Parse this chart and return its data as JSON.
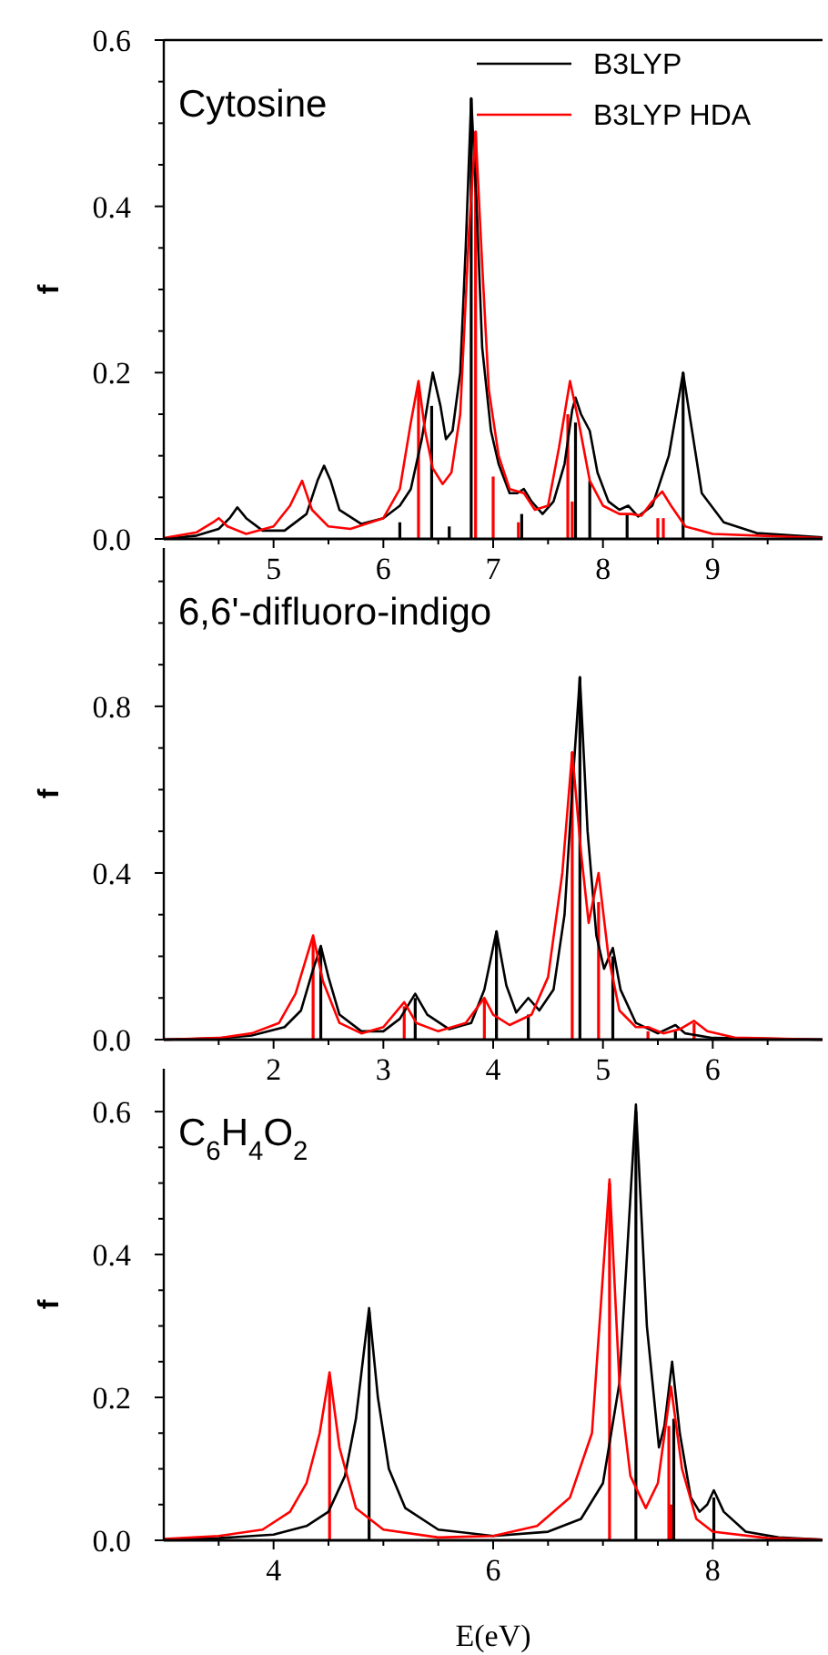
{
  "chart_data": [
    {
      "type": "line",
      "title": "Cytosine",
      "ylabel": "f",
      "xlim": [
        4,
        10
      ],
      "ylim": [
        0,
        0.6
      ],
      "legend": "top right",
      "xticks": [
        {
          "value": 4.5,
          "label": null
        },
        5,
        {
          "value": 5.5,
          "label": null
        },
        6,
        {
          "value": 6.5,
          "label": null
        },
        7,
        {
          "value": 7.5,
          "label": null
        },
        8,
        {
          "value": 8.5,
          "label": null
        },
        9,
        {
          "value": 9.5,
          "label": null
        }
      ],
      "yticks": [
        {
          "value": 0,
          "label": "0.0"
        },
        {
          "value": 0.05,
          "label": null
        },
        {
          "value": 0.1,
          "label": null
        },
        {
          "value": 0.15,
          "label": null
        },
        {
          "value": 0.2,
          "label": "0.2"
        },
        {
          "value": 0.25,
          "label": null
        },
        {
          "value": 0.3,
          "label": null
        },
        {
          "value": 0.35,
          "label": null
        },
        {
          "value": 0.4,
          "label": "0.4"
        },
        {
          "value": 0.45,
          "label": null
        },
        {
          "value": 0.5,
          "label": null
        },
        {
          "value": 0.55,
          "label": null
        },
        {
          "value": 0.6,
          "label": "0.6"
        }
      ],
      "series": [
        {
          "type": "bar",
          "color": "#000000",
          "x": [
            6.15,
            6.44,
            6.6,
            6.8,
            7.26,
            7.75,
            7.88,
            8.22,
            8.73
          ],
          "values": [
            0.02,
            0.16,
            0.015,
            0.53,
            0.03,
            0.14,
            0.07,
            0.03,
            0.2
          ]
        },
        {
          "type": "bar",
          "color": "#ff0000",
          "x": [
            6.32,
            6.84,
            7.0,
            7.23,
            7.68,
            7.72,
            8.5,
            8.55
          ],
          "values": [
            0.18,
            0.49,
            0.075,
            0.02,
            0.15,
            0.045,
            0.025,
            0.025
          ]
        },
        {
          "name": "B3LYP",
          "color": "#000000",
          "x": [
            4.0,
            4.3,
            4.5,
            4.6,
            4.67,
            4.75,
            4.9,
            5.1,
            5.3,
            5.4,
            5.46,
            5.52,
            5.6,
            5.8,
            6.0,
            6.15,
            6.25,
            6.35,
            6.45,
            6.52,
            6.57,
            6.63,
            6.7,
            6.75,
            6.8,
            6.85,
            6.9,
            6.98,
            7.05,
            7.15,
            7.22,
            7.28,
            7.35,
            7.45,
            7.55,
            7.65,
            7.72,
            7.75,
            7.8,
            7.88,
            7.95,
            8.05,
            8.15,
            8.23,
            8.32,
            8.45,
            8.6,
            8.73,
            8.8,
            8.9,
            9.1,
            9.4,
            10
          ],
          "values": [
            0.0,
            0.004,
            0.012,
            0.025,
            0.038,
            0.025,
            0.01,
            0.01,
            0.03,
            0.07,
            0.088,
            0.07,
            0.035,
            0.018,
            0.025,
            0.04,
            0.06,
            0.12,
            0.2,
            0.16,
            0.12,
            0.13,
            0.2,
            0.35,
            0.53,
            0.4,
            0.23,
            0.13,
            0.09,
            0.055,
            0.055,
            0.06,
            0.045,
            0.03,
            0.045,
            0.09,
            0.155,
            0.17,
            0.15,
            0.13,
            0.08,
            0.045,
            0.035,
            0.04,
            0.027,
            0.04,
            0.1,
            0.2,
            0.14,
            0.055,
            0.02,
            0.007,
            0.002
          ]
        },
        {
          "name": "B3LYP HDA",
          "color": "#ff0000",
          "x": [
            4.0,
            4.3,
            4.45,
            4.5,
            4.58,
            4.75,
            5.0,
            5.15,
            5.26,
            5.35,
            5.5,
            5.7,
            6.0,
            6.15,
            6.25,
            6.32,
            6.38,
            6.45,
            6.54,
            6.62,
            6.7,
            6.78,
            6.84,
            6.9,
            6.96,
            7.05,
            7.15,
            7.28,
            7.38,
            7.5,
            7.6,
            7.7,
            7.78,
            7.88,
            8.0,
            8.15,
            8.26,
            8.35,
            8.45,
            8.54,
            8.62,
            8.75,
            9.0,
            10
          ],
          "values": [
            0.001,
            0.008,
            0.02,
            0.025,
            0.015,
            0.006,
            0.015,
            0.04,
            0.07,
            0.035,
            0.015,
            0.012,
            0.025,
            0.06,
            0.14,
            0.19,
            0.13,
            0.085,
            0.066,
            0.08,
            0.15,
            0.37,
            0.49,
            0.33,
            0.18,
            0.1,
            0.06,
            0.055,
            0.035,
            0.04,
            0.11,
            0.19,
            0.14,
            0.07,
            0.04,
            0.03,
            0.03,
            0.028,
            0.045,
            0.057,
            0.04,
            0.015,
            0.006,
            0.001
          ]
        }
      ]
    },
    {
      "type": "line",
      "title": "6,6'-difluoro-indigo",
      "ylabel": "f",
      "xlim": [
        1,
        7
      ],
      "ylim": [
        0,
        1.18
      ],
      "legend": false,
      "xticks": [
        {
          "value": 1.5,
          "label": null
        },
        2,
        {
          "value": 2.5,
          "label": null
        },
        3,
        {
          "value": 3.5,
          "label": null
        },
        4,
        {
          "value": 4.5,
          "label": null
        },
        5,
        {
          "value": 5.5,
          "label": null
        },
        6,
        {
          "value": 6.5,
          "label": null
        }
      ],
      "yticks": [
        {
          "value": 0,
          "label": "0.0"
        },
        {
          "value": 0.1,
          "label": null
        },
        {
          "value": 0.2,
          "label": null
        },
        {
          "value": 0.3,
          "label": null
        },
        {
          "value": 0.4,
          "label": "0.4"
        },
        {
          "value": 0.5,
          "label": null
        },
        {
          "value": 0.6,
          "label": null
        },
        {
          "value": 0.7,
          "label": null
        },
        {
          "value": 0.8,
          "label": "0.8"
        },
        {
          "value": 0.9,
          "label": null
        },
        {
          "value": 1.0,
          "label": null
        },
        {
          "value": 1.1,
          "label": null
        }
      ],
      "series": [
        {
          "type": "bar",
          "color": "#000000",
          "x": [
            2.43,
            3.29,
            4.03,
            4.32,
            4.79,
            5.09,
            5.66
          ],
          "values": [
            0.22,
            0.1,
            0.26,
            0.06,
            0.87,
            0.2,
            0.02
          ]
        },
        {
          "type": "bar",
          "color": "#ff0000",
          "x": [
            2.36,
            3.19,
            3.92,
            4.72,
            4.96,
            5.41,
            5.83
          ],
          "values": [
            0.24,
            0.08,
            0.1,
            0.69,
            0.33,
            0.02,
            0.04
          ]
        },
        {
          "color": "#000000",
          "x": [
            1.0,
            1.5,
            1.8,
            2.1,
            2.25,
            2.35,
            2.43,
            2.5,
            2.6,
            2.8,
            3.0,
            3.15,
            3.29,
            3.4,
            3.6,
            3.8,
            3.92,
            4.03,
            4.12,
            4.21,
            4.32,
            4.42,
            4.55,
            4.65,
            4.72,
            4.79,
            4.86,
            4.94,
            5.01,
            5.09,
            5.16,
            5.3,
            5.5,
            5.66,
            5.75,
            6.0,
            7.0
          ],
          "values": [
            0,
            0.003,
            0.01,
            0.03,
            0.07,
            0.16,
            0.225,
            0.15,
            0.06,
            0.02,
            0.02,
            0.05,
            0.11,
            0.06,
            0.025,
            0.04,
            0.12,
            0.26,
            0.13,
            0.065,
            0.1,
            0.07,
            0.12,
            0.3,
            0.6,
            0.87,
            0.5,
            0.25,
            0.17,
            0.22,
            0.12,
            0.04,
            0.015,
            0.035,
            0.015,
            0.004,
            0
          ]
        },
        {
          "color": "#ff0000",
          "x": [
            1.0,
            1.5,
            1.8,
            2.05,
            2.2,
            2.36,
            2.45,
            2.6,
            2.8,
            3.0,
            3.19,
            3.3,
            3.5,
            3.75,
            3.92,
            4.0,
            4.15,
            4.35,
            4.5,
            4.63,
            4.72,
            4.8,
            4.87,
            4.96,
            5.05,
            5.15,
            5.3,
            5.41,
            5.55,
            5.7,
            5.83,
            5.95,
            6.2,
            7.0
          ],
          "values": [
            0,
            0.004,
            0.015,
            0.04,
            0.11,
            0.25,
            0.14,
            0.04,
            0.015,
            0.03,
            0.09,
            0.04,
            0.02,
            0.04,
            0.1,
            0.06,
            0.035,
            0.06,
            0.15,
            0.4,
            0.69,
            0.45,
            0.28,
            0.4,
            0.2,
            0.07,
            0.03,
            0.03,
            0.015,
            0.025,
            0.045,
            0.02,
            0.005,
            0
          ]
        }
      ]
    },
    {
      "type": "line",
      "title": "C$_{6}$H$_{4}$O$_{2}$",
      "ylabel": "f",
      "xlabel": "E(eV)",
      "xlim": [
        3,
        9
      ],
      "ylim": [
        0,
        0.66
      ],
      "legend": false,
      "xticks": [
        {
          "value": 3.5,
          "label": null
        },
        4,
        {
          "value": 4.5,
          "label": null
        },
        {
          "value": 5,
          "label": null
        },
        {
          "value": 5.5,
          "label": null
        },
        6,
        {
          "value": 6.5,
          "label": null
        },
        {
          "value": 7,
          "label": null
        },
        {
          "value": 7.5,
          "label": null
        },
        8,
        {
          "value": 8.5,
          "label": null
        }
      ],
      "yticks": [
        {
          "value": 0,
          "label": "0.0"
        },
        {
          "value": 0.05,
          "label": null
        },
        {
          "value": 0.1,
          "label": null
        },
        {
          "value": 0.15,
          "label": null
        },
        {
          "value": 0.2,
          "label": "0.2"
        },
        {
          "value": 0.25,
          "label": null
        },
        {
          "value": 0.3,
          "label": null
        },
        {
          "value": 0.35,
          "label": null
        },
        {
          "value": 0.4,
          "label": "0.4"
        },
        {
          "value": 0.45,
          "label": null
        },
        {
          "value": 0.5,
          "label": null
        },
        {
          "value": 0.55,
          "label": null
        },
        {
          "value": 0.6,
          "label": "0.6"
        }
      ],
      "series": [
        {
          "type": "bar",
          "color": "#000000",
          "x": [
            4.87,
            7.3,
            7.645,
            8.01
          ],
          "values": [
            0.32,
            0.6,
            0.17,
            0.06
          ]
        },
        {
          "type": "bar",
          "color": "#ff0000",
          "x": [
            4.51,
            7.06,
            7.6,
            7.62
          ],
          "values": [
            0.23,
            0.5,
            0.16,
            0.05
          ]
        },
        {
          "color": "#000000",
          "x": [
            3.0,
            3.5,
            4.0,
            4.3,
            4.5,
            4.65,
            4.75,
            4.87,
            4.95,
            5.05,
            5.2,
            5.5,
            6.0,
            6.5,
            6.8,
            7.0,
            7.15,
            7.3,
            7.4,
            7.51,
            7.56,
            7.63,
            7.7,
            7.8,
            7.88,
            7.95,
            8.01,
            8.1,
            8.3,
            8.6,
            9.0
          ],
          "values": [
            0.001,
            0.003,
            0.008,
            0.02,
            0.04,
            0.09,
            0.17,
            0.325,
            0.2,
            0.1,
            0.045,
            0.015,
            0.006,
            0.012,
            0.03,
            0.08,
            0.22,
            0.61,
            0.3,
            0.13,
            0.16,
            0.25,
            0.15,
            0.06,
            0.04,
            0.05,
            0.07,
            0.04,
            0.012,
            0.004,
            0.001
          ]
        },
        {
          "color": "#ff0000",
          "x": [
            3.0,
            3.5,
            3.9,
            4.15,
            4.3,
            4.42,
            4.51,
            4.6,
            4.75,
            5.0,
            5.5,
            6.0,
            6.4,
            6.7,
            6.9,
            7.06,
            7.15,
            7.25,
            7.39,
            7.5,
            7.62,
            7.72,
            7.85,
            8.0,
            8.5,
            9.0
          ],
          "values": [
            0.002,
            0.006,
            0.015,
            0.04,
            0.08,
            0.15,
            0.235,
            0.13,
            0.045,
            0.015,
            0.004,
            0.006,
            0.02,
            0.06,
            0.15,
            0.505,
            0.22,
            0.09,
            0.045,
            0.08,
            0.215,
            0.1,
            0.03,
            0.012,
            0.003,
            0.001
          ]
        }
      ]
    }
  ]
}
